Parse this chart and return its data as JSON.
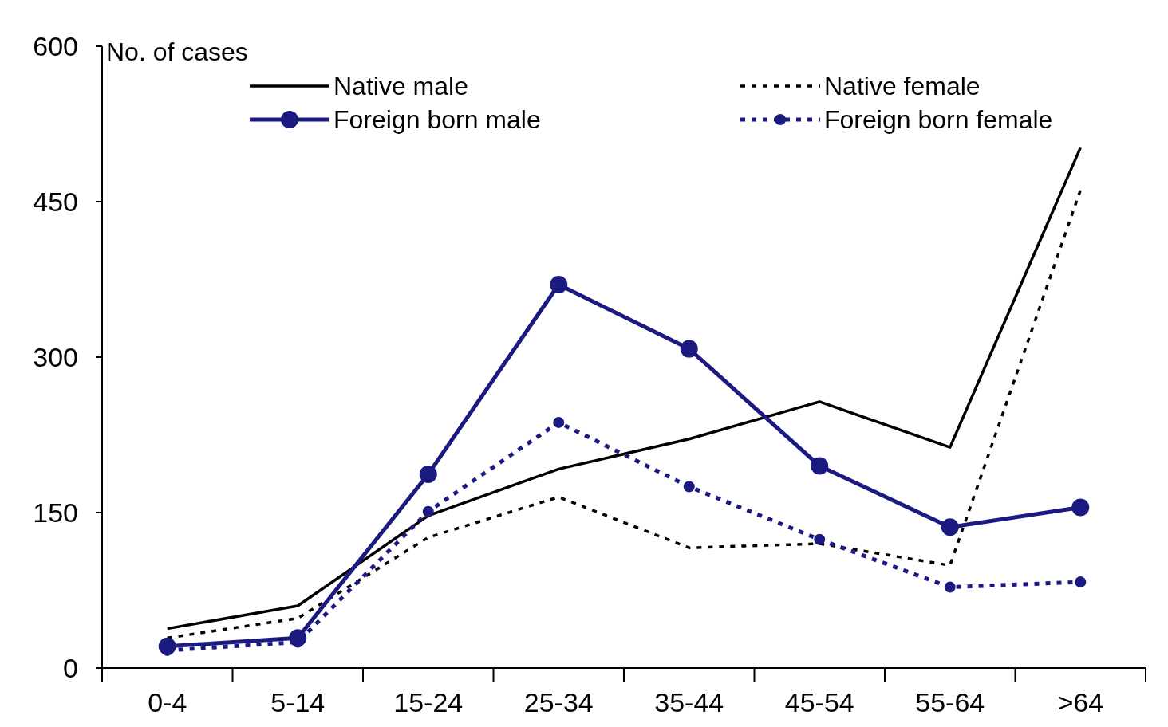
{
  "chart_data": {
    "type": "line",
    "ylabel": "No.  of cases",
    "categories": [
      "0-4",
      "5-14",
      "15-24",
      "25-34",
      "35-44",
      "45-54",
      "55-64",
      ">64"
    ],
    "ylim": [
      0,
      600
    ],
    "yticks": [
      0,
      150,
      300,
      450,
      600
    ],
    "grid": false,
    "legend": "top",
    "series": [
      {
        "name": "Native male",
        "color": "#000000",
        "line_style": "solid",
        "marker": "none",
        "values": [
          38,
          60,
          147,
          192,
          221,
          257,
          213,
          502
        ]
      },
      {
        "name": "Native female",
        "color": "#000000",
        "line_style": "dotted",
        "marker": "none",
        "values": [
          29,
          48,
          126,
          165,
          116,
          120,
          99,
          461
        ]
      },
      {
        "name": "Foreign born male",
        "color": "#1a1a80",
        "line_style": "solid",
        "marker": "circle",
        "values": [
          21,
          29,
          187,
          370,
          308,
          195,
          136,
          155
        ]
      },
      {
        "name": "Foreign born female",
        "color": "#1a1a80",
        "line_style": "dotted",
        "marker": "circle",
        "values": [
          17,
          25,
          151,
          237,
          175,
          124,
          78,
          83
        ]
      }
    ]
  }
}
